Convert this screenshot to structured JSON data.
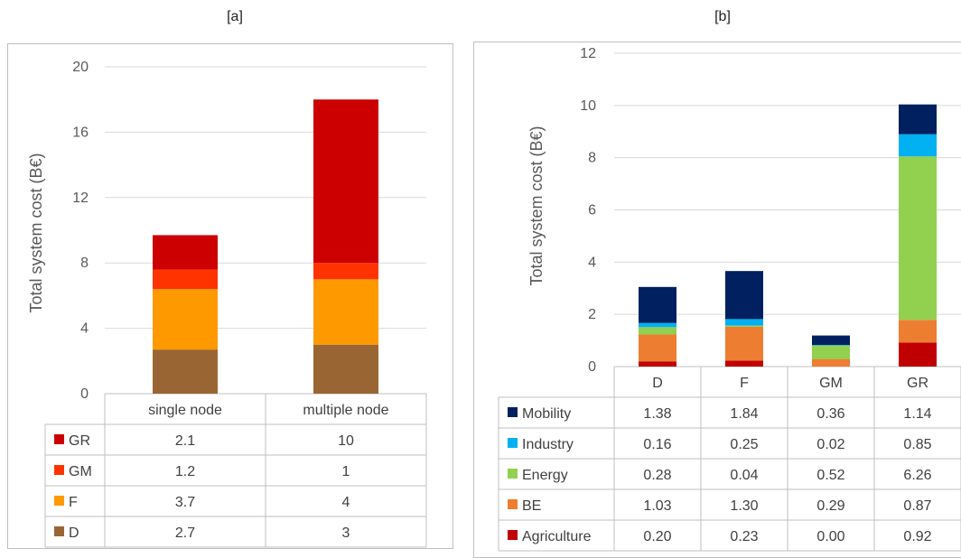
{
  "panels": {
    "a_label": "[a]",
    "b_label": "[b]"
  },
  "chart_data": [
    {
      "type": "bar",
      "stacked": true,
      "panel": "[a]",
      "title": "",
      "xlabel": "",
      "ylabel": "Total system cost (B€)",
      "ylim": [
        0,
        20
      ],
      "yticks": [
        "0",
        "4",
        "8",
        "12",
        "16",
        "20"
      ],
      "categories": [
        "single node",
        "multiple node"
      ],
      "grid": true,
      "legend": "data table below chart",
      "series": [
        {
          "name": "D",
          "color": "#996633",
          "values": [
            2.7,
            3
          ],
          "labels": [
            "2.7",
            "3"
          ]
        },
        {
          "name": "F",
          "color": "#ff9900",
          "values": [
            3.7,
            4
          ],
          "labels": [
            "3.7",
            "4"
          ]
        },
        {
          "name": "GM",
          "color": "#ff3300",
          "values": [
            1.2,
            1
          ],
          "labels": [
            "1.2",
            "1"
          ]
        },
        {
          "name": "GR",
          "color": "#cc0000",
          "values": [
            2.1,
            10
          ],
          "labels": [
            "2.1",
            "10"
          ]
        }
      ]
    },
    {
      "type": "bar",
      "stacked": true,
      "panel": "[b]",
      "title": "",
      "xlabel": "",
      "ylabel": "Total system cost (B€)",
      "ylim": [
        0,
        12
      ],
      "yticks": [
        "0",
        "2",
        "4",
        "6",
        "8",
        "10",
        "12"
      ],
      "categories": [
        "D",
        "F",
        "GM",
        "GR"
      ],
      "grid": true,
      "legend": "data table below chart",
      "series": [
        {
          "name": "Agriculture",
          "color": "#c00000",
          "values": [
            0.2,
            0.23,
            0.0,
            0.92
          ],
          "labels": [
            "0.20",
            "0.23",
            "0.00",
            "0.92"
          ]
        },
        {
          "name": "BE",
          "color": "#ed7d31",
          "values": [
            1.03,
            1.3,
            0.29,
            0.87
          ],
          "labels": [
            "1.03",
            "1.30",
            "0.29",
            "0.87"
          ]
        },
        {
          "name": "Energy",
          "color": "#92d050",
          "values": [
            0.28,
            0.04,
            0.52,
            6.26
          ],
          "labels": [
            "0.28",
            "0.04",
            "0.52",
            "6.26"
          ]
        },
        {
          "name": "Industry",
          "color": "#00b0f0",
          "values": [
            0.16,
            0.25,
            0.02,
            0.85
          ],
          "labels": [
            "0.16",
            "0.25",
            "0.02",
            "0.85"
          ]
        },
        {
          "name": "Mobility",
          "color": "#002060",
          "values": [
            1.38,
            1.84,
            0.36,
            1.14
          ],
          "labels": [
            "1.38",
            "1.84",
            "0.36",
            "1.14"
          ]
        }
      ]
    }
  ]
}
